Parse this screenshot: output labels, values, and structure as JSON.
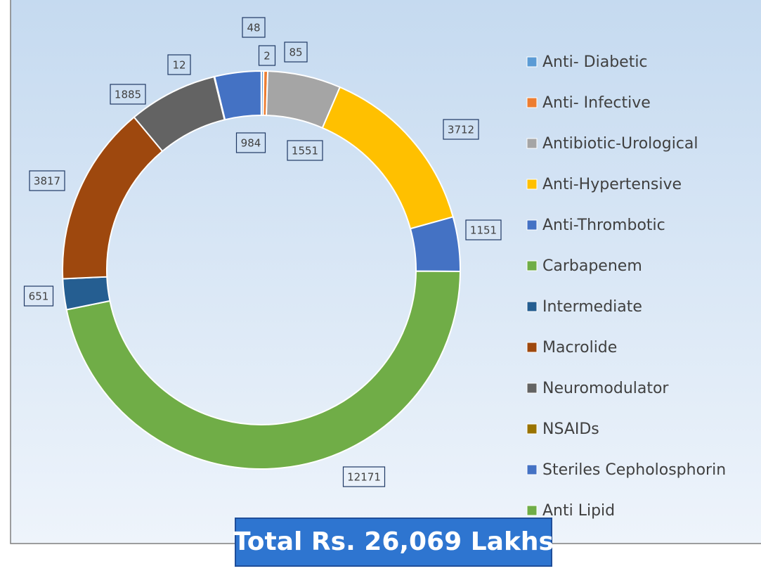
{
  "chart_data": {
    "type": "donut",
    "categories": [
      "Anti- Diabetic",
      "Anti- Infective",
      "Antibiotic-Urological",
      "Anti-Hypertensive",
      "Anti-Thrombotic",
      "Carbapenem",
      "Intermediate",
      "Macrolide",
      "Neuromodulator",
      "NSAIDs",
      "Steriles Cepholosphorin",
      "Anti Lipid"
    ],
    "values": [
      48,
      85,
      1551,
      3712,
      1151,
      12171,
      651,
      3817,
      1885,
      12,
      984,
      2
    ],
    "colors": [
      "#5B9BD5",
      "#ED7D31",
      "#A5A5A5",
      "#FFC000",
      "#4472C4",
      "#70AD47",
      "#255E91",
      "#9E480E",
      "#636363",
      "#997300",
      "#4472C4",
      "#70AD47"
    ],
    "legend": "right",
    "annotation": "Total Rs. 26,069 Lakhs"
  }
}
